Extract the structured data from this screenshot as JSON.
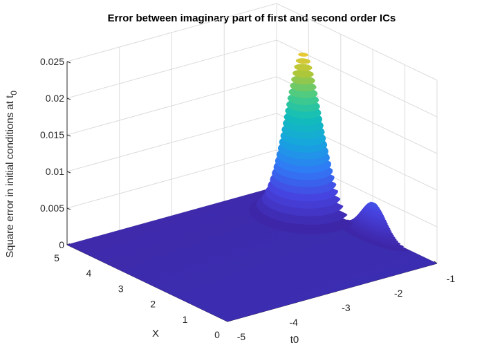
{
  "chart_data": {
    "type": "surface",
    "title": "Error between imaginary part of first and second order ICs",
    "xlabel": "t0",
    "ylabel": "X",
    "zlabel": "Square error in initial conditions at t",
    "zlabel_subscript": "0",
    "xlim": [
      -5,
      -1
    ],
    "ylim": [
      0,
      5
    ],
    "zlim": [
      0,
      0.025
    ],
    "x_ticks": [
      "-5",
      "-4",
      "-3",
      "-2",
      "-1"
    ],
    "y_ticks": [
      "0",
      "1",
      "2",
      "3",
      "4",
      "5"
    ],
    "z_ticks": [
      "0",
      "0.005",
      "0.01",
      "0.015",
      "0.02",
      "0.025"
    ],
    "grid": true,
    "colormap": "parula",
    "colors": {
      "low": "#3e26a8",
      "mid": "#13beb7",
      "high": "#f9c932"
    },
    "peaks": [
      {
        "t0": -1.35,
        "X": 3.6,
        "value": 0.0225
      },
      {
        "t0": -1.05,
        "X": 1.9,
        "value": 0.0045
      }
    ],
    "floor_value": 0
  }
}
